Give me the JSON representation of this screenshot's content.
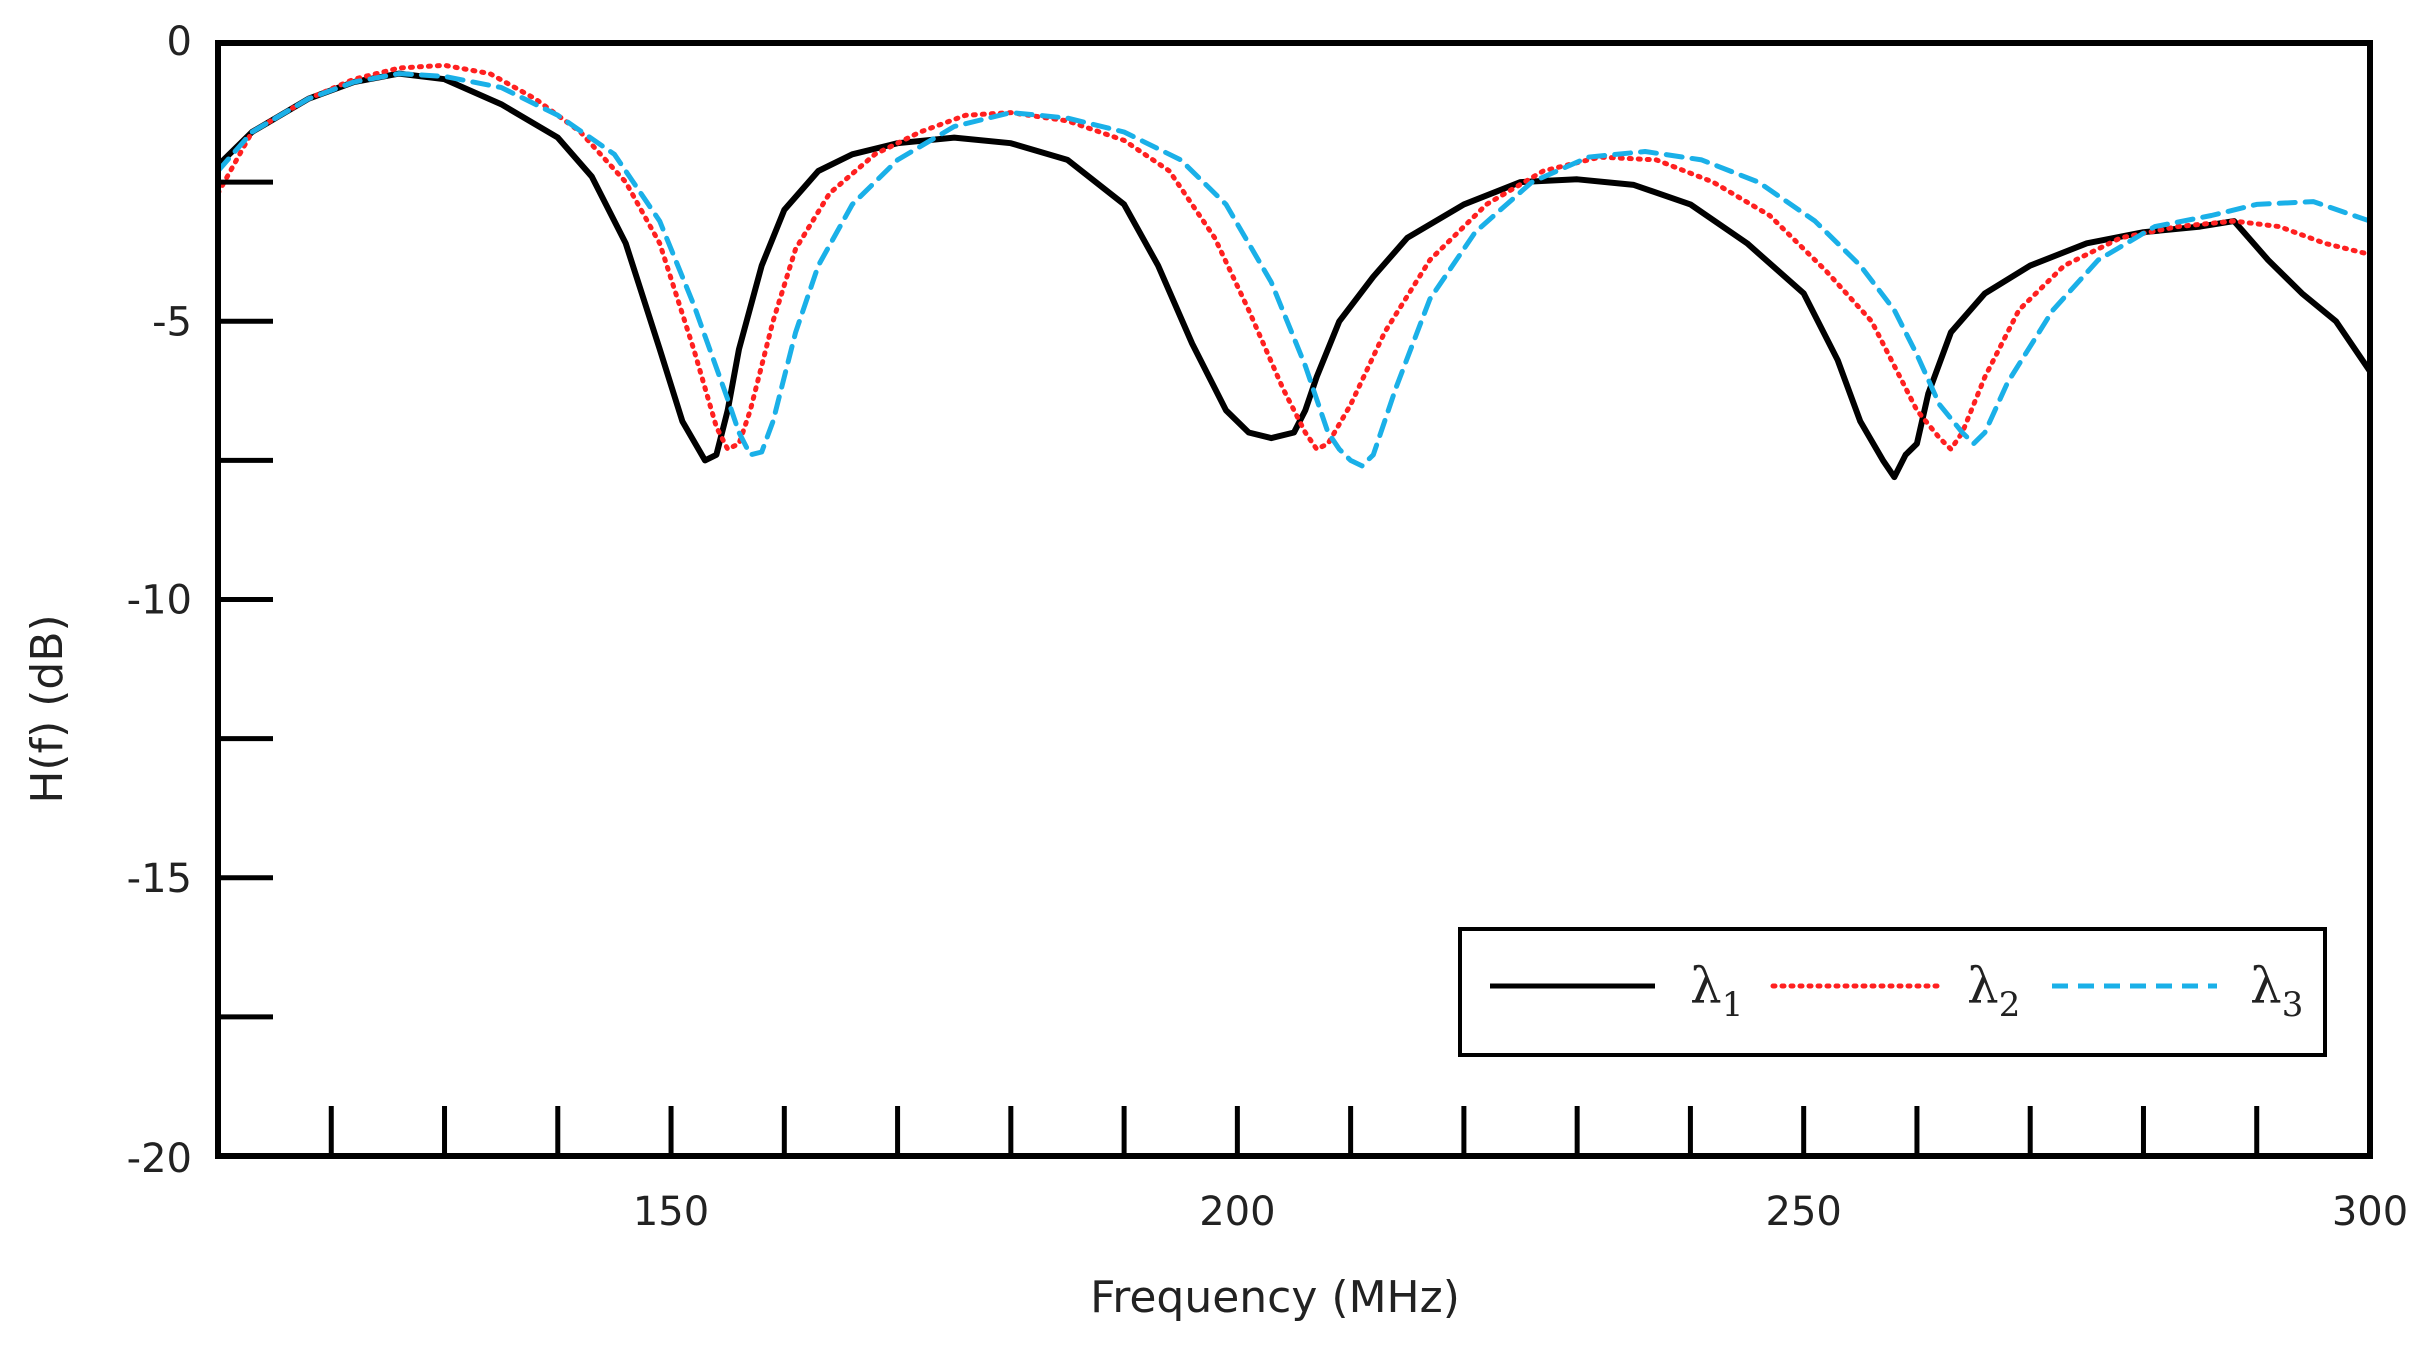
{
  "chart_data": {
    "type": "line",
    "title": "",
    "xlabel": "Frequency (MHz)",
    "ylabel": "H(f) (dB)",
    "xlim": [
      110,
      300
    ],
    "ylim": [
      -20,
      0
    ],
    "x_tick_labels": [
      {
        "value": 150,
        "label": "150"
      },
      {
        "value": 200,
        "label": "200"
      },
      {
        "value": 250,
        "label": "250"
      },
      {
        "value": 300,
        "label": "300"
      }
    ],
    "y_tick_labels": [
      {
        "value": 0,
        "label": "0"
      },
      {
        "value": -5,
        "label": "-5"
      },
      {
        "value": -10,
        "label": "-10"
      },
      {
        "value": -15,
        "label": "-15"
      },
      {
        "value": -20,
        "label": "-20"
      }
    ],
    "x_minor_ticks": [
      120,
      130,
      140,
      150,
      160,
      170,
      180,
      190,
      200,
      210,
      220,
      230,
      240,
      250,
      260,
      270,
      280,
      290
    ],
    "y_minor_ticks": [
      -2.5,
      -7.5,
      -12.5,
      -17.5
    ],
    "grid": false,
    "legend": {
      "placement": "bottom-right"
    },
    "series": [
      {
        "name": "λ1",
        "symbol": "λ",
        "subscript": "1",
        "color": "#000000",
        "style": "solid",
        "x": [
          110,
          113,
          118,
          122,
          126,
          130,
          135,
          140,
          143,
          146,
          149,
          151,
          153,
          154,
          155,
          156,
          158,
          160,
          163,
          166,
          170,
          175,
          180,
          185,
          190,
          193,
          196,
          199,
          201,
          203,
          205,
          206,
          207,
          209,
          212,
          215,
          220,
          225,
          230,
          235,
          240,
          245,
          250,
          253,
          255,
          257,
          258,
          259,
          260,
          261,
          263,
          266,
          270,
          275,
          280,
          285,
          288,
          291,
          294,
          297,
          300
        ],
        "y": [
          -2.2,
          -1.6,
          -1.0,
          -0.7,
          -0.55,
          -0.65,
          -1.1,
          -1.7,
          -2.4,
          -3.6,
          -5.5,
          -6.8,
          -7.5,
          -7.4,
          -6.6,
          -5.5,
          -4.0,
          -3.0,
          -2.3,
          -2.0,
          -1.8,
          -1.7,
          -1.8,
          -2.1,
          -2.9,
          -4.0,
          -5.4,
          -6.6,
          -7.0,
          -7.1,
          -7.0,
          -6.6,
          -6.0,
          -5.0,
          -4.2,
          -3.5,
          -2.9,
          -2.5,
          -2.45,
          -2.55,
          -2.9,
          -3.6,
          -4.5,
          -5.7,
          -6.8,
          -7.5,
          -7.8,
          -7.4,
          -7.2,
          -6.3,
          -5.2,
          -4.5,
          -4.0,
          -3.6,
          -3.4,
          -3.3,
          -3.2,
          -3.9,
          -4.5,
          -5.0,
          -5.9
        ]
      },
      {
        "name": "λ2",
        "symbol": "λ",
        "subscript": "2",
        "color": "#ff2020",
        "style": "dotted",
        "x": [
          110,
          113,
          118,
          122,
          126,
          130,
          134,
          138,
          142,
          146,
          149,
          152,
          154,
          155,
          156,
          157,
          159,
          161,
          164,
          168,
          172,
          176,
          180,
          185,
          190,
          194,
          198,
          201,
          204,
          206,
          207,
          208,
          210,
          213,
          217,
          222,
          227,
          232,
          237,
          242,
          247,
          252,
          256,
          258,
          260,
          262,
          263,
          264,
          266,
          269,
          273,
          278,
          283,
          288,
          292,
          296,
          300
        ],
        "y": [
          -2.7,
          -1.6,
          -1.0,
          -0.65,
          -0.45,
          -0.4,
          -0.55,
          -1.0,
          -1.6,
          -2.5,
          -3.6,
          -5.5,
          -6.9,
          -7.3,
          -7.2,
          -6.6,
          -5.0,
          -3.7,
          -2.7,
          -2.0,
          -1.6,
          -1.3,
          -1.25,
          -1.4,
          -1.75,
          -2.3,
          -3.5,
          -4.8,
          -6.2,
          -7.0,
          -7.3,
          -7.2,
          -6.5,
          -5.2,
          -3.9,
          -2.9,
          -2.3,
          -2.05,
          -2.1,
          -2.5,
          -3.1,
          -4.1,
          -5.0,
          -5.8,
          -6.6,
          -7.1,
          -7.3,
          -7.0,
          -6.0,
          -4.8,
          -4.0,
          -3.5,
          -3.3,
          -3.2,
          -3.3,
          -3.6,
          -3.8
        ]
      },
      {
        "name": "λ3",
        "symbol": "λ",
        "subscript": "3",
        "color": "#1ab0e8",
        "style": "dashed",
        "x": [
          110,
          113,
          118,
          122,
          126,
          130,
          135,
          140,
          145,
          149,
          152,
          155,
          156,
          157,
          158,
          159,
          161,
          163,
          166,
          170,
          175,
          180,
          185,
          190,
          195,
          199,
          203,
          206,
          208,
          209,
          210,
          211,
          212,
          214,
          217,
          221,
          226,
          231,
          236,
          241,
          246,
          251,
          255,
          258,
          260,
          262,
          264,
          265,
          266,
          268,
          272,
          276,
          281,
          286,
          290,
          295,
          300
        ],
        "y": [
          -2.3,
          -1.6,
          -1.0,
          -0.7,
          -0.55,
          -0.6,
          -0.8,
          -1.3,
          -2.0,
          -3.2,
          -4.7,
          -6.4,
          -7.0,
          -7.4,
          -7.35,
          -6.8,
          -5.2,
          -4.0,
          -2.9,
          -2.1,
          -1.5,
          -1.25,
          -1.35,
          -1.6,
          -2.1,
          -2.9,
          -4.3,
          -5.8,
          -7.0,
          -7.3,
          -7.5,
          -7.6,
          -7.4,
          -6.2,
          -4.6,
          -3.4,
          -2.5,
          -2.05,
          -1.95,
          -2.1,
          -2.5,
          -3.2,
          -4.0,
          -4.8,
          -5.6,
          -6.5,
          -7.0,
          -7.2,
          -7.0,
          -6.1,
          -4.8,
          -3.9,
          -3.3,
          -3.1,
          -2.9,
          -2.85,
          -3.2
        ]
      }
    ]
  }
}
